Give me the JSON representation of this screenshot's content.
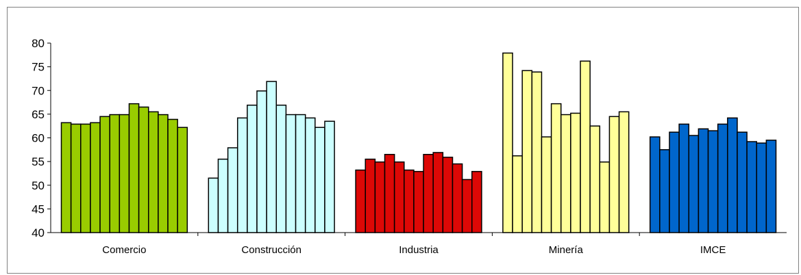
{
  "chart_data": {
    "type": "bar",
    "title": "",
    "xlabel": "",
    "ylabel": "",
    "ylim": [
      40,
      80
    ],
    "yticks": [
      40,
      45,
      50,
      55,
      60,
      65,
      70,
      75,
      80
    ],
    "grid": false,
    "legend": "none",
    "groups": [
      {
        "category": "Comercio",
        "color": "#99cc00",
        "values": [
          63.2,
          62.9,
          62.9,
          63.2,
          64.5,
          64.9,
          64.9,
          67.2,
          66.5,
          65.5,
          64.9,
          63.9,
          62.2
        ]
      },
      {
        "category": "Construcción",
        "color": "#ccffff",
        "values": [
          51.5,
          55.5,
          57.9,
          64.2,
          66.9,
          69.9,
          71.9,
          66.9,
          64.9,
          64.9,
          64.2,
          62.2,
          63.5
        ]
      },
      {
        "category": "Industria",
        "color": "#dd0806",
        "values": [
          53.2,
          55.5,
          54.9,
          56.5,
          54.9,
          53.2,
          52.9,
          56.5,
          56.9,
          55.9,
          54.5,
          51.2,
          52.9
        ]
      },
      {
        "category": "Minería",
        "color": "#ffff99",
        "values": [
          77.9,
          56.2,
          74.2,
          73.9,
          60.2,
          67.2,
          64.9,
          65.2,
          76.2,
          62.5,
          54.9,
          64.5,
          65.5
        ]
      },
      {
        "category": "IMCE",
        "color": "#0066cc",
        "values": [
          60.2,
          57.5,
          61.2,
          62.9,
          60.5,
          61.9,
          61.5,
          62.9,
          64.2,
          61.2,
          59.2,
          58.9,
          59.5
        ]
      }
    ]
  }
}
